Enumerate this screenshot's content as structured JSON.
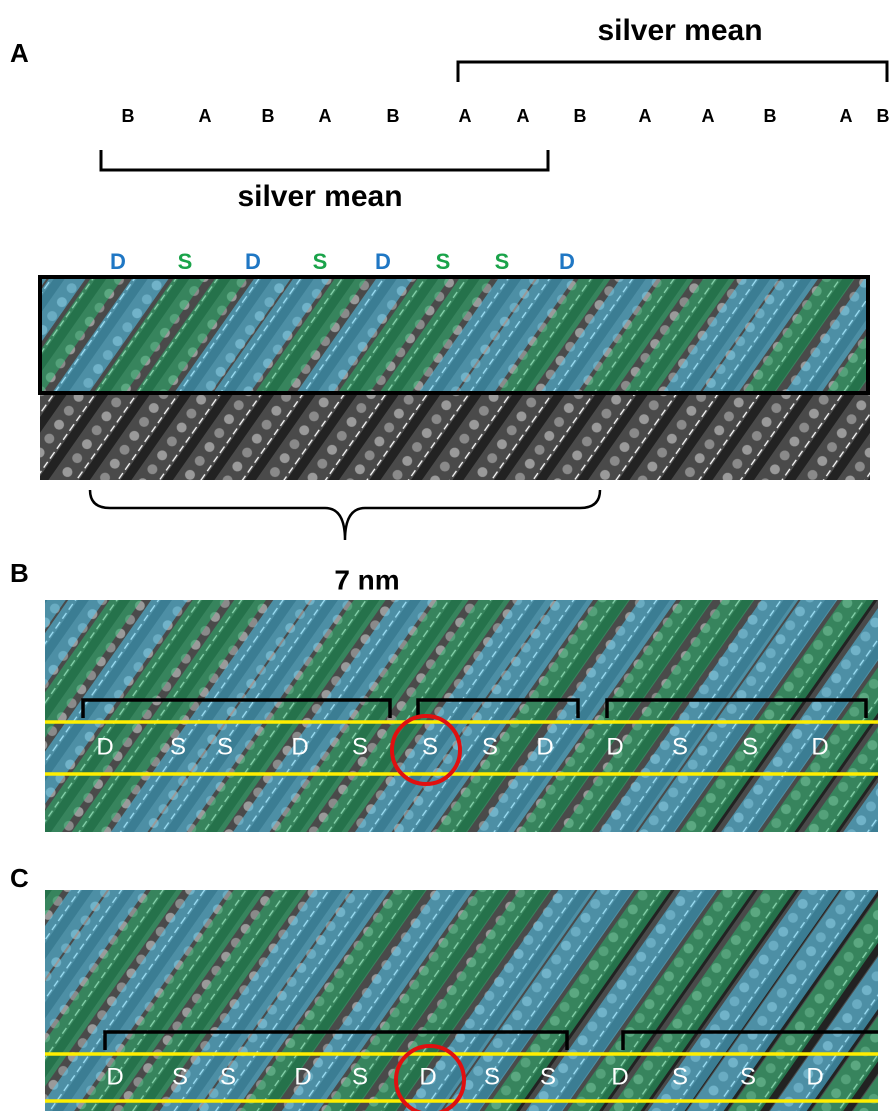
{
  "panel_a": {
    "label": "A",
    "top_bracket_label": "silver mean",
    "bottom_bracket_label": "silver mean",
    "sequence": [
      "B",
      "A",
      "B",
      "A",
      "B",
      "A",
      "A",
      "B",
      "A",
      "A",
      "B",
      "A",
      "B"
    ],
    "stripe_labels": [
      {
        "text": "D",
        "color": "#1f77c4"
      },
      {
        "text": "S",
        "color": "#1aa34a"
      },
      {
        "text": "D",
        "color": "#1f77c4"
      },
      {
        "text": "S",
        "color": "#1aa34a"
      },
      {
        "text": "D",
        "color": "#1f77c4"
      },
      {
        "text": "S",
        "color": "#1aa34a"
      },
      {
        "text": "S",
        "color": "#1aa34a"
      },
      {
        "text": "D",
        "color": "#1f77c4"
      }
    ],
    "scale_label": "7 nm"
  },
  "panel_b": {
    "label": "B",
    "sequence": [
      "D",
      "S",
      "S",
      "D",
      "S",
      "S",
      "S",
      "D",
      "D",
      "S",
      "S",
      "D"
    ]
  },
  "panel_c": {
    "label": "C",
    "sequence": [
      "D",
      "S",
      "S",
      "D",
      "S",
      "D",
      "S",
      "S",
      "D",
      "S",
      "S",
      "D"
    ]
  }
}
